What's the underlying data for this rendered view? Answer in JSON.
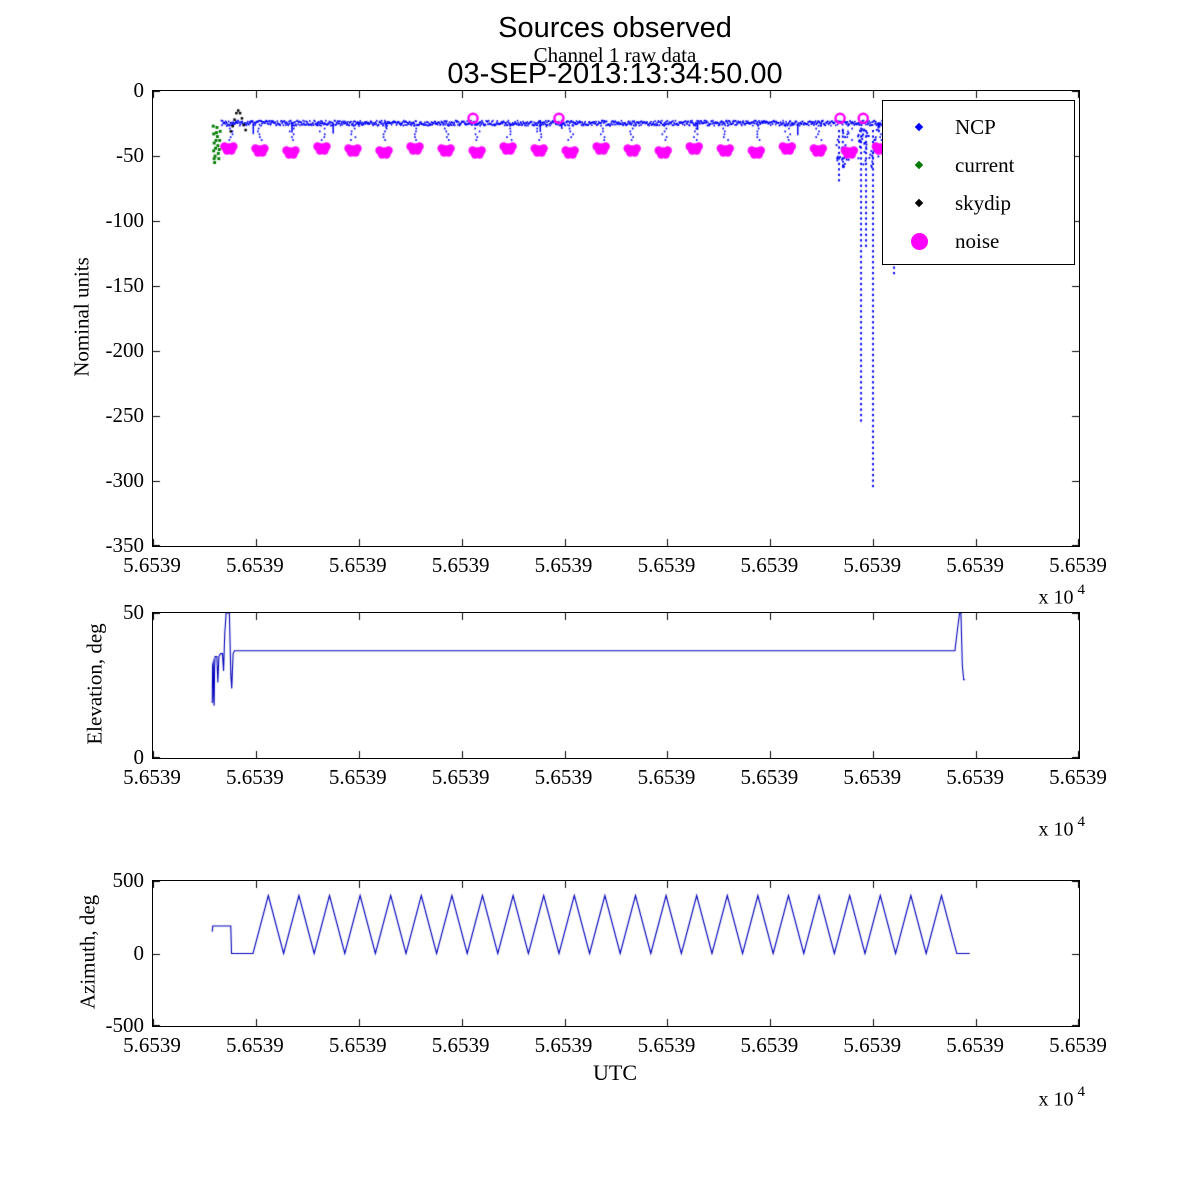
{
  "figure": {
    "xlabel": "UTC",
    "axis_multiplier": "x 10",
    "axis_multiplier_exponent": "4"
  },
  "chart_data": [
    {
      "type": "scatter",
      "title": "Sources observed",
      "subtitle": "Channel 1 raw data",
      "title_line2": "03-SEP-2013:13:34:50.00",
      "ylabel": "Nominal units",
      "ylim": [
        -350,
        0
      ],
      "yticks": [
        0,
        -50,
        -100,
        -150,
        -200,
        -250,
        -300,
        -350
      ],
      "xtick_label": "5.6539",
      "n_xticks": 10,
      "x_multiplier": "x 10^4",
      "legend": [
        {
          "label": "NCP",
          "color": "#0000ff",
          "marker": "dot"
        },
        {
          "label": "current",
          "color": "#007a00",
          "marker": "dot"
        },
        {
          "label": "skydip",
          "color": "#000000",
          "marker": "dot"
        },
        {
          "label": "noise",
          "color": "#ff00ff",
          "marker": "circle"
        }
      ],
      "series": {
        "ncp": {
          "color": "#0000ff",
          "baseline_y": -24,
          "baseline_x": [
            0.073,
            0.803
          ],
          "spikes": [
            [
              0.7408,
              -70
            ],
            [
              0.7449,
              -52
            ],
            [
              0.7646,
              -255
            ],
            [
              0.77,
              -120
            ],
            [
              0.7775,
              -305
            ],
            [
              0.8002,
              -140
            ]
          ]
        },
        "noise": {
          "color": "#ff00ff",
          "y": -45,
          "x": [
            0.082,
            0.1155,
            0.149,
            0.1825,
            0.216,
            0.2495,
            0.283,
            0.3165,
            0.35,
            0.3835,
            0.417,
            0.4505,
            0.484,
            0.5175,
            0.551,
            0.5845,
            0.618,
            0.6515,
            0.685,
            0.7185,
            0.752,
            0.7855
          ],
          "top_x": [
            0.3456,
            0.4384,
            0.742,
            0.767
          ],
          "top_y": -21
        },
        "current": {
          "color": "#007a00",
          "points": [
            [
              0.065,
              -27
            ],
            [
              0.0655,
              -33
            ],
            [
              0.066,
              -40
            ],
            [
              0.0655,
              -46
            ],
            [
              0.066,
              -52
            ],
            [
              0.0665,
              -55
            ],
            [
              0.067,
              -50
            ],
            [
              0.0675,
              -44
            ],
            [
              0.068,
              -38
            ],
            [
              0.0685,
              -32
            ],
            [
              0.069,
              -28
            ],
            [
              0.0695,
              -35
            ],
            [
              0.07,
              -42
            ],
            [
              0.0705,
              -48
            ],
            [
              0.071,
              -52
            ],
            [
              0.0715,
              -45
            ],
            [
              0.072,
              -38
            ],
            [
              0.0725,
              -31
            ]
          ]
        },
        "skydip": {
          "color": "#000000",
          "points": [
            [
              0.084,
              -31
            ],
            [
              0.086,
              -27
            ],
            [
              0.088,
              -22
            ],
            [
              0.09,
              -17
            ],
            [
              0.092,
              -15
            ],
            [
              0.094,
              -17
            ],
            [
              0.096,
              -21
            ],
            [
              0.098,
              -26
            ],
            [
              0.1,
              -30
            ]
          ]
        }
      }
    },
    {
      "type": "line",
      "ylabel": "Elevation, deg",
      "ylim": [
        0,
        50
      ],
      "yticks": [
        50,
        0
      ],
      "xtick_label": "5.6539",
      "n_xticks": 10,
      "x_multiplier": "x 10^4",
      "color": "#0000bb",
      "points": [
        [
          0.064,
          19
        ],
        [
          0.0643,
          32
        ],
        [
          0.065,
          33
        ],
        [
          0.0655,
          21
        ],
        [
          0.066,
          18
        ],
        [
          0.0665,
          31
        ],
        [
          0.067,
          35
        ],
        [
          0.069,
          35
        ],
        [
          0.07,
          26
        ],
        [
          0.0712,
          35
        ],
        [
          0.073,
          36
        ],
        [
          0.075,
          36
        ],
        [
          0.0762,
          30
        ],
        [
          0.0775,
          43
        ],
        [
          0.079,
          50
        ],
        [
          0.0825,
          50
        ],
        [
          0.084,
          29
        ],
        [
          0.085,
          24
        ],
        [
          0.0865,
          36
        ],
        [
          0.088,
          37
        ],
        [
          0.3,
          37
        ],
        [
          0.6,
          37
        ],
        [
          0.86,
          37
        ],
        [
          0.866,
          37
        ],
        [
          0.869,
          45
        ],
        [
          0.871,
          50
        ],
        [
          0.8725,
          50
        ],
        [
          0.874,
          32
        ],
        [
          0.8755,
          27
        ],
        [
          0.877,
          27
        ]
      ]
    },
    {
      "type": "line",
      "ylabel": "Azimuth, deg",
      "ylim": [
        -500,
        500
      ],
      "yticks": [
        500,
        0,
        -500
      ],
      "xtick_label": "5.6539",
      "n_xticks": 10,
      "x_multiplier": "x 10^4",
      "color": "#0000bb",
      "pre": [
        [
          0.064,
          150
        ],
        [
          0.0645,
          190
        ],
        [
          0.084,
          190
        ],
        [
          0.0848,
          0
        ],
        [
          0.108,
          0
        ]
      ],
      "wave": {
        "x0": 0.108,
        "x1": 0.868,
        "min": 0,
        "max": 400,
        "peaks": 23
      },
      "post": [
        [
          0.868,
          0
        ],
        [
          0.882,
          0
        ]
      ]
    }
  ]
}
